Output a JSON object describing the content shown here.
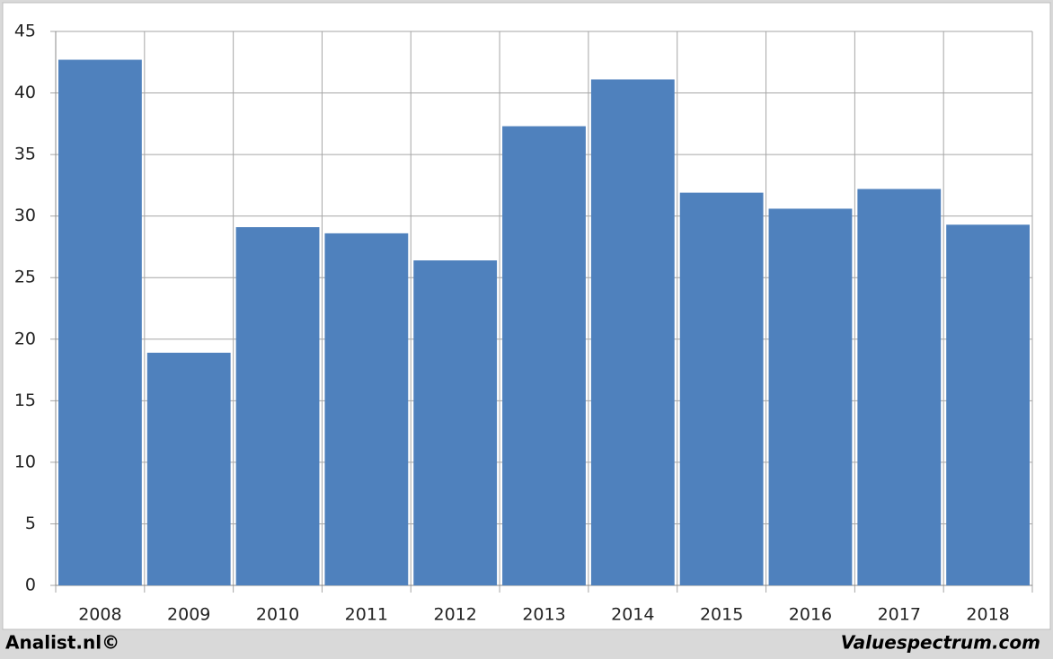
{
  "chart_data": {
    "type": "bar",
    "categories": [
      "2008",
      "2009",
      "2010",
      "2011",
      "2012",
      "2013",
      "2014",
      "2015",
      "2016",
      "2017",
      "2018"
    ],
    "values": [
      42.7,
      18.9,
      29.1,
      28.6,
      26.4,
      37.3,
      41.1,
      31.9,
      30.6,
      32.2,
      29.3
    ],
    "color": "#4f81bd",
    "ylim": [
      0,
      45
    ],
    "yticks": [
      0,
      5,
      10,
      15,
      20,
      25,
      30,
      35,
      40,
      45
    ],
    "grid": true
  },
  "footer": {
    "left": "Analist.nl©",
    "right": "Valuespectrum.com"
  }
}
